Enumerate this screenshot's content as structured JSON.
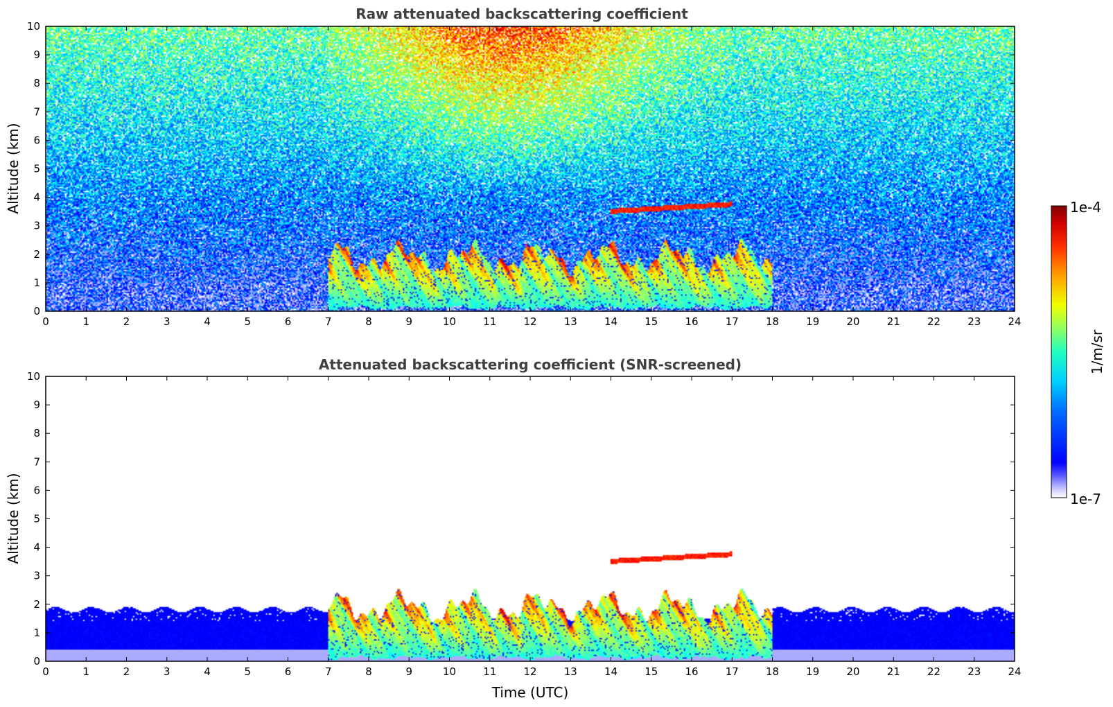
{
  "chart_data": [
    {
      "type": "heatmap",
      "title": "Raw attenuated backscattering coefficient",
      "xlabel": "",
      "ylabel": "Altitude (km)",
      "xlim": [
        0,
        24
      ],
      "ylim": [
        0,
        10
      ],
      "xticks": [
        "0",
        "1",
        "2",
        "3",
        "4",
        "5",
        "6",
        "7",
        "8",
        "9",
        "10",
        "11",
        "12",
        "13",
        "14",
        "15",
        "16",
        "17",
        "18",
        "19",
        "20",
        "21",
        "22",
        "23",
        "24"
      ],
      "yticks": [
        "0",
        "1",
        "2",
        "3",
        "4",
        "5",
        "6",
        "7",
        "8",
        "9",
        "10"
      ],
      "features": [
        {
          "kind": "cloud_layer",
          "time_start": 7.0,
          "time_end": 18.0,
          "alt_bottom": 0.2,
          "alt_top": 2.8
        },
        {
          "kind": "thin_layer",
          "time_start": 14.0,
          "time_end": 17.0,
          "alt": 3.5
        },
        {
          "kind": "elevated_noise_maximum",
          "time_start": 8.0,
          "time_end": 16.0,
          "alt_bottom": 4.0,
          "alt_top": 10.0
        }
      ],
      "grid": false
    },
    {
      "type": "heatmap",
      "title": "Attenuated backscattering coefficient (SNR-screened)",
      "xlabel": "Time (UTC)",
      "ylabel": "Altitude (km)",
      "xlim": [
        0,
        24
      ],
      "ylim": [
        0,
        10
      ],
      "xticks": [
        "0",
        "1",
        "2",
        "3",
        "4",
        "5",
        "6",
        "7",
        "8",
        "9",
        "10",
        "11",
        "12",
        "13",
        "14",
        "15",
        "16",
        "17",
        "18",
        "19",
        "20",
        "21",
        "22",
        "23",
        "24"
      ],
      "yticks": [
        "0",
        "1",
        "2",
        "3",
        "4",
        "5",
        "6",
        "7",
        "8",
        "9",
        "10"
      ],
      "features": [
        {
          "kind": "boundary_layer",
          "time_start": 0.0,
          "time_end": 24.0,
          "alt_bottom": 0.0,
          "alt_top": 1.8
        },
        {
          "kind": "cloud_layer",
          "time_start": 7.0,
          "time_end": 18.0,
          "alt_bottom": 0.2,
          "alt_top": 2.8
        },
        {
          "kind": "thin_layer",
          "time_start": 14.0,
          "time_end": 17.0,
          "alt": 3.5
        }
      ],
      "grid": false
    }
  ],
  "colorbar": {
    "max_label": "1e-4",
    "min_label": "1e-7",
    "unit_label": "1/m/sr",
    "colormap": "jet"
  }
}
